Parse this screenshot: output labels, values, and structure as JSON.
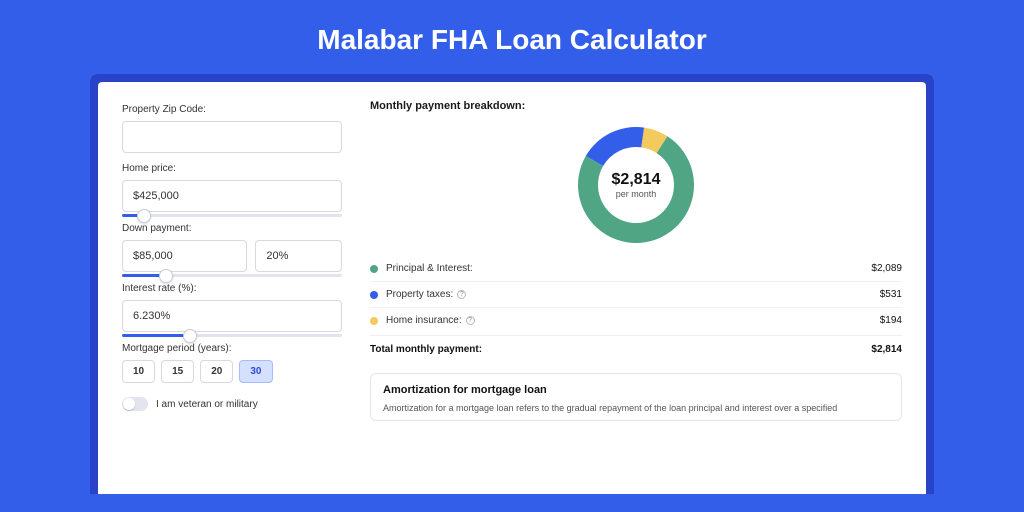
{
  "colors": {
    "page_bg": "#335eea",
    "card_outer": "#2743c7",
    "accent": "#335eea",
    "slice_green": "#50a684",
    "slice_blue": "#335eea",
    "slice_yellow": "#f4c95d"
  },
  "title": "Malabar FHA Loan Calculator",
  "form": {
    "zip_label": "Property Zip Code:",
    "zip_value": "",
    "home_price_label": "Home price:",
    "home_price_value": "$425,000",
    "home_price_slider_pct": 10,
    "down_payment_label": "Down payment:",
    "down_payment_amount": "$85,000",
    "down_payment_pct": "20%",
    "down_payment_slider_pct": 20,
    "interest_label": "Interest rate (%):",
    "interest_value": "6.230%",
    "interest_slider_pct": 31,
    "period_label": "Mortgage period (years):",
    "periods": [
      "10",
      "15",
      "20",
      "30"
    ],
    "period_active_index": 3,
    "veteran_label": "I am veteran or military",
    "veteran_on": false
  },
  "breakdown": {
    "title": "Monthly payment breakdown:",
    "donut": {
      "amount": "$2,814",
      "sub": "per month",
      "slices": [
        {
          "label": "Principal & Interest:",
          "value": "$2,089",
          "color": "#50a684",
          "pct": 74.2
        },
        {
          "label": "Property taxes:",
          "value": "$531",
          "color": "#335eea",
          "pct": 18.9,
          "info": true
        },
        {
          "label": "Home insurance:",
          "value": "$194",
          "color": "#f4c95d",
          "pct": 6.9,
          "info": true
        }
      ]
    },
    "total_label": "Total monthly payment:",
    "total_value": "$2,814"
  },
  "amortization": {
    "title": "Amortization for mortgage loan",
    "text": "Amortization for a mortgage loan refers to the gradual repayment of the loan principal and interest over a specified"
  }
}
